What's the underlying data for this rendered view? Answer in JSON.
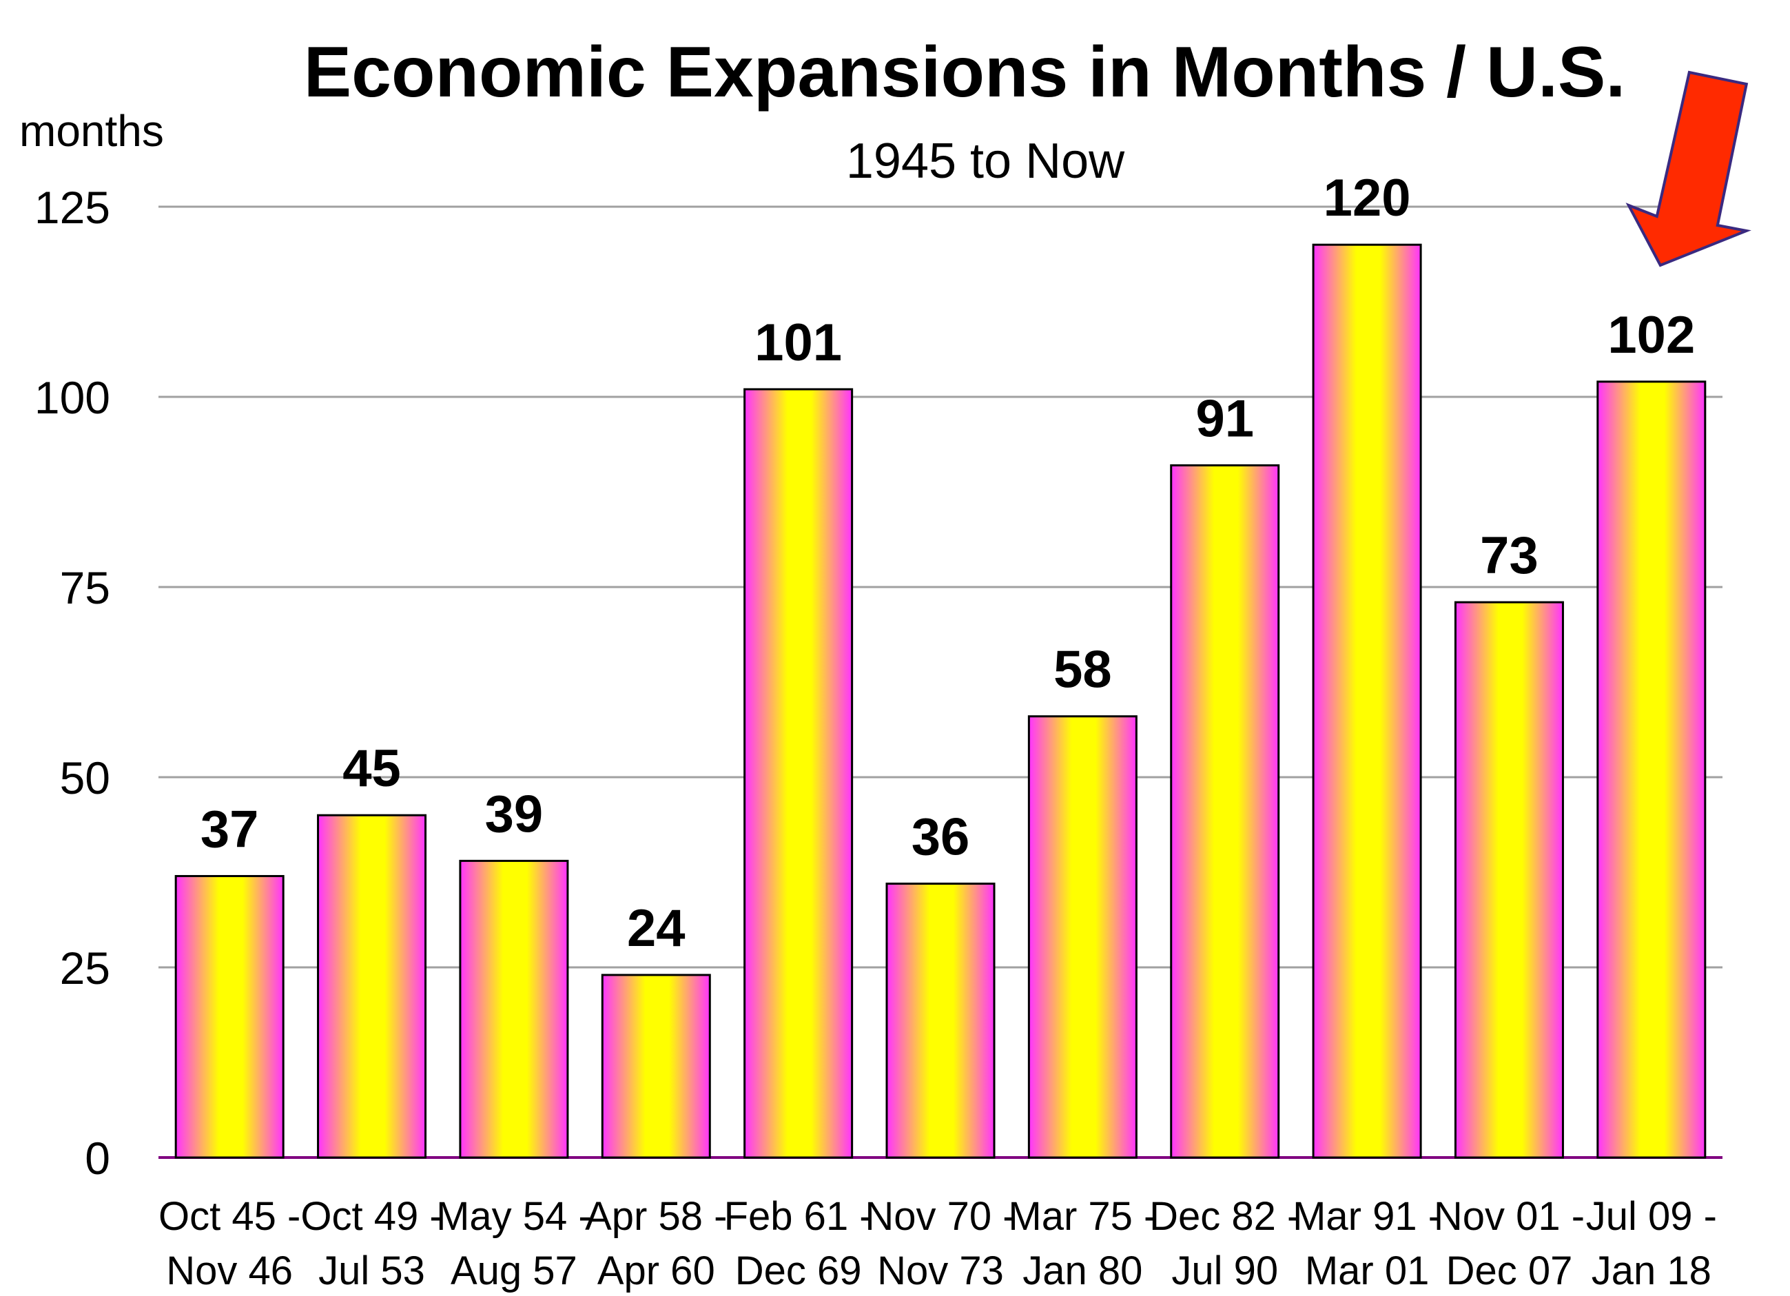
{
  "chart_data": {
    "type": "bar",
    "title": "Economic Expansions in Months / U.S.",
    "subtitle": "1945 to Now",
    "ylabel": "months",
    "xlabel": "",
    "ylim": [
      0,
      125
    ],
    "yticks": [
      0,
      25,
      50,
      75,
      100,
      125
    ],
    "grid": true,
    "categories": [
      [
        "Oct 45 -",
        "Nov 46"
      ],
      [
        "Oct 49 -",
        "Jul 53"
      ],
      [
        "May 54 -",
        "Aug 57"
      ],
      [
        "Apr 58 -",
        "Apr 60"
      ],
      [
        "Feb 61 -",
        "Dec 69"
      ],
      [
        "Nov 70 -",
        "Nov 73"
      ],
      [
        "Mar 75 -",
        "Jan 80"
      ],
      [
        "Dec 82 -",
        "Jul 90"
      ],
      [
        "Mar 91 -",
        "Mar 01"
      ],
      [
        "Nov 01 -",
        "Dec 07"
      ],
      [
        "Jul 09 -",
        "Jan 18"
      ]
    ],
    "values": [
      37,
      45,
      39,
      24,
      101,
      36,
      58,
      91,
      120,
      73,
      102
    ],
    "colors": {
      "bar_center": "#ffff00",
      "bar_edge": "#ff33ff",
      "gridline": "#a0a0a0",
      "baseline": "#800080",
      "arrow_fill": "#ff2a00",
      "arrow_stroke": "#3a2a80"
    },
    "annotations": [
      {
        "type": "arrow-icon",
        "points_to_category_index": 10
      }
    ]
  }
}
